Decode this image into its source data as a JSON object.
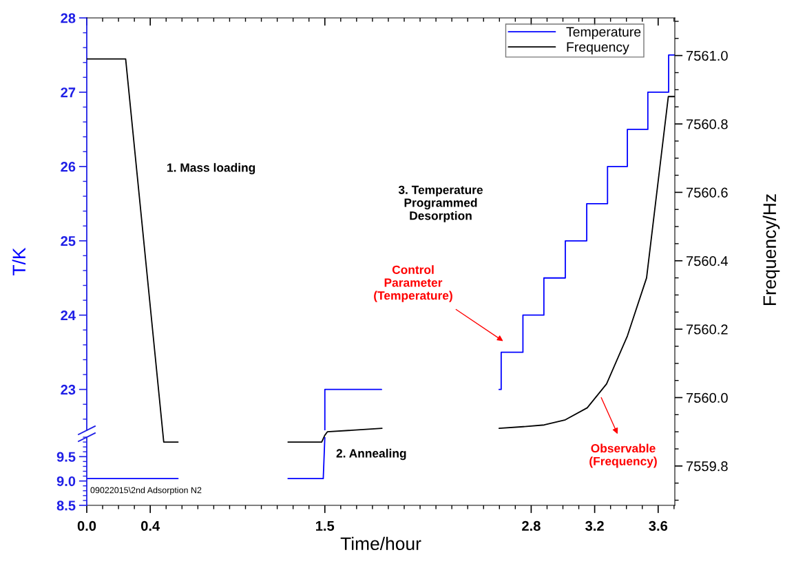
{
  "chart_data": [
    {
      "type": "line",
      "xlabel": "Time/hour",
      "ylabel": "T/K",
      "y2label": "Frequency/Hz",
      "xlim": [
        0,
        3.705
      ],
      "ylim": [
        22.45,
        28
      ],
      "y2lim": [
        7559.685,
        7561.11
      ],
      "legend": "top right",
      "xticks": [
        {
          "value": 0,
          "label": "0.0"
        },
        {
          "value": 0.1,
          "label": null
        },
        {
          "value": 0.2,
          "label": null
        },
        {
          "value": 0.3,
          "label": null
        },
        {
          "value": 0.4,
          "label": "0.4"
        },
        {
          "value": 0.5,
          "label": null
        },
        {
          "value": 0.6,
          "label": null
        },
        {
          "value": 0.7,
          "label": null
        },
        {
          "value": 0.8,
          "label": null
        },
        {
          "value": 0.9,
          "label": null
        },
        {
          "value": 1.0,
          "label": null
        },
        {
          "value": 1.1,
          "label": null
        },
        {
          "value": 1.2,
          "label": null
        },
        {
          "value": 1.3,
          "label": null
        },
        {
          "value": 1.4,
          "label": null
        },
        1.5,
        {
          "value": 1.6,
          "label": null
        },
        {
          "value": 1.7,
          "label": null
        },
        {
          "value": 1.8,
          "label": null
        },
        {
          "value": 1.9,
          "label": null
        },
        {
          "value": 2.0,
          "label": null
        },
        {
          "value": 2.1,
          "label": null
        },
        {
          "value": 2.2,
          "label": null
        },
        {
          "value": 2.3,
          "label": null
        },
        {
          "value": 2.4,
          "label": null
        },
        {
          "value": 2.5,
          "label": null
        },
        {
          "value": 2.6,
          "label": null
        },
        {
          "value": 2.7,
          "label": null
        },
        2.8,
        {
          "value": 2.9,
          "label": null
        },
        {
          "value": 3.0,
          "label": null
        },
        {
          "value": 3.1,
          "label": null
        },
        3.2,
        {
          "value": 3.3,
          "label": null
        },
        {
          "value": 3.4,
          "label": null
        },
        {
          "value": 3.5,
          "label": null
        },
        3.6,
        {
          "value": 3.7,
          "label": null
        }
      ],
      "yticks": [
        {
          "value": 22.6,
          "label": null
        },
        {
          "value": 22.8,
          "label": null
        },
        23,
        {
          "value": 23.2,
          "label": null
        },
        {
          "value": 23.4,
          "label": null
        },
        {
          "value": 23.6,
          "label": null
        },
        {
          "value": 23.8,
          "label": null
        },
        24,
        {
          "value": 24.2,
          "label": null
        },
        {
          "value": 24.4,
          "label": null
        },
        {
          "value": 24.6,
          "label": null
        },
        {
          "value": 24.8,
          "label": null
        },
        25,
        {
          "value": 25.2,
          "label": null
        },
        {
          "value": 25.4,
          "label": null
        },
        {
          "value": 25.6,
          "label": null
        },
        {
          "value": 25.8,
          "label": null
        },
        26,
        {
          "value": 26.2,
          "label": null
        },
        {
          "value": 26.4,
          "label": null
        },
        {
          "value": 26.6,
          "label": null
        },
        {
          "value": 26.8,
          "label": null
        },
        27,
        {
          "value": 27.2,
          "label": null
        },
        {
          "value": 27.4,
          "label": null
        },
        {
          "value": 27.6,
          "label": null
        },
        {
          "value": 27.8,
          "label": null
        },
        28
      ],
      "y2ticks": [
        {
          "value": 7559.7,
          "label": null
        },
        {
          "value": 7559.75,
          "label": null
        },
        7559.8,
        {
          "value": 7559.85,
          "label": null
        },
        {
          "value": 7559.9,
          "label": null
        },
        {
          "value": 7559.95,
          "label": null
        },
        {
          "value": 7560.0,
          "label": "7560.0"
        },
        {
          "value": 7560.05,
          "label": null
        },
        {
          "value": 7560.1,
          "label": null
        },
        {
          "value": 7560.15,
          "label": null
        },
        7560.2,
        {
          "value": 7560.25,
          "label": null
        },
        {
          "value": 7560.3,
          "label": null
        },
        {
          "value": 7560.35,
          "label": null
        },
        7560.4,
        {
          "value": 7560.45,
          "label": null
        },
        {
          "value": 7560.5,
          "label": null
        },
        {
          "value": 7560.55,
          "label": null
        },
        7560.6,
        {
          "value": 7560.65,
          "label": null
        },
        {
          "value": 7560.7,
          "label": null
        },
        {
          "value": 7560.75,
          "label": null
        },
        7560.8,
        {
          "value": 7560.85,
          "label": null
        },
        {
          "value": 7560.9,
          "label": null
        },
        {
          "value": 7560.95,
          "label": null
        },
        {
          "value": 7561.0,
          "label": "7561.0"
        },
        {
          "value": 7561.05,
          "label": null
        },
        {
          "value": 7561.1,
          "label": null
        }
      ],
      "series": [
        {
          "name": "Temperature",
          "color": "#0000ff",
          "x": [
            1.5,
            1.5,
            1.857,
            2.2,
            2.598,
            2.611,
            2.611,
            2.748,
            2.748,
            2.88,
            2.88,
            3.015,
            3.015,
            3.15,
            3.15,
            3.281,
            3.281,
            3.406,
            3.406,
            3.535,
            3.535,
            3.666,
            3.666,
            3.705
          ],
          "values": [
            22.45,
            23.0,
            23.0,
            null,
            23.0,
            23.0,
            23.5,
            23.5,
            24.0,
            24.0,
            24.5,
            24.5,
            25.0,
            25.0,
            25.5,
            25.5,
            26.0,
            26.0,
            26.5,
            26.5,
            27.0,
            27.0,
            27.5,
            27.5
          ]
        },
        {
          "name": "Frequency",
          "axis": "y2",
          "color": "#000000",
          "x": [
            0,
            0.245,
            0.485,
            0.575,
            1.0,
            1.268,
            1.48,
            1.5,
            1.516,
            1.86,
            2.2,
            2.598,
            2.75,
            2.882,
            3.015,
            3.153,
            3.275,
            3.406,
            3.527,
            3.664,
            3.705
          ],
          "values": [
            7560.99,
            7560.99,
            7559.87,
            7559.87,
            null,
            7559.87,
            7559.87,
            7559.89,
            7559.9,
            7559.91,
            null,
            7559.91,
            7559.915,
            7559.92,
            7559.935,
            7559.97,
            7560.04,
            7560.18,
            7560.35,
            7560.88,
            7560.88
          ]
        }
      ],
      "annotations": [
        "1. Mass loading",
        "3. Temperature\nProgrammed\nDesorption",
        "Control\nParameter\n(Temperature)",
        "Observable\n(Frequency)"
      ]
    },
    {
      "type": "line",
      "xlim": [
        0,
        3.705
      ],
      "ylim": [
        8.5,
        9.9
      ],
      "tick_labels": "y",
      "yticks": [
        8.5,
        {
          "value": 8.6,
          "label": null
        },
        {
          "value": 8.7,
          "label": null
        },
        {
          "value": 8.8,
          "label": null
        },
        {
          "value": 8.9,
          "label": null
        },
        {
          "value": 9.0,
          "label": "9.0"
        },
        {
          "value": 9.1,
          "label": null
        },
        {
          "value": 9.2,
          "label": null
        },
        {
          "value": 9.3,
          "label": null
        },
        {
          "value": 9.4,
          "label": null
        },
        9.5,
        {
          "value": 9.6,
          "label": null
        },
        {
          "value": 9.7,
          "label": null
        },
        {
          "value": 9.8,
          "label": null
        },
        {
          "value": 9.9,
          "label": null
        }
      ],
      "series": [
        {
          "color": "#0000ff",
          "x": [
            0,
            0.575,
            1.0,
            1.268,
            1.49,
            1.5
          ],
          "values": [
            9.05,
            9.05,
            null,
            9.05,
            9.05,
            9.9
          ]
        }
      ],
      "annotations": [
        "09022015\\2nd Adsorption N2",
        "2. Annealing"
      ]
    }
  ]
}
